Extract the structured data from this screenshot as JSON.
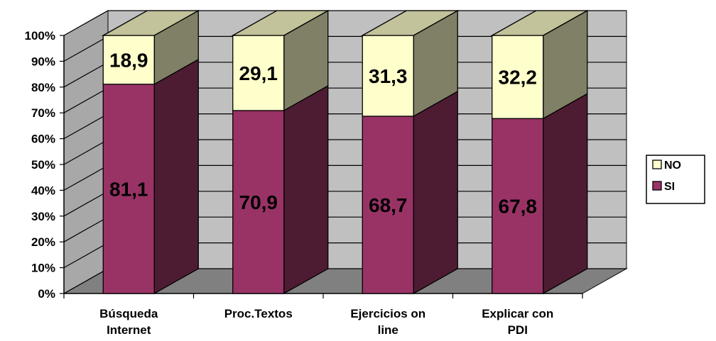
{
  "chart_data": {
    "type": "bar",
    "stacked": true,
    "percent_stacked": true,
    "three_d": true,
    "categories": [
      [
        "Búsqueda",
        "Internet"
      ],
      [
        "Proc.Textos"
      ],
      [
        "Ejercicios on",
        "line"
      ],
      [
        "Explicar con",
        "PDI"
      ]
    ],
    "series": [
      {
        "name": "SI",
        "values": [
          81.1,
          70.9,
          68.7,
          67.8
        ],
        "labels": [
          "81,1",
          "70,9",
          "68,7",
          "67,8"
        ]
      },
      {
        "name": "NO",
        "values": [
          18.9,
          29.1,
          31.3,
          32.2
        ],
        "labels": [
          "18,9",
          "29,1",
          "31,3",
          "32,2"
        ]
      }
    ],
    "y_ticks": [
      "0%",
      "10%",
      "20%",
      "30%",
      "40%",
      "50%",
      "60%",
      "70%",
      "80%",
      "90%",
      "100%"
    ],
    "ylim": [
      0,
      100
    ],
    "grid": true,
    "legend": {
      "position": "right",
      "entries": [
        "NO",
        "SI"
      ]
    },
    "colors": {
      "SI": "#993366",
      "SI_side": "#4d1c33",
      "SI_top": "#b84d80",
      "NO": "#ffffcc",
      "NO_side": "#808066",
      "NO_top": "#c2c29b",
      "back_wall": "#c0c0c0",
      "side_wall": "#a8a8a8",
      "floor": "#808080"
    }
  }
}
